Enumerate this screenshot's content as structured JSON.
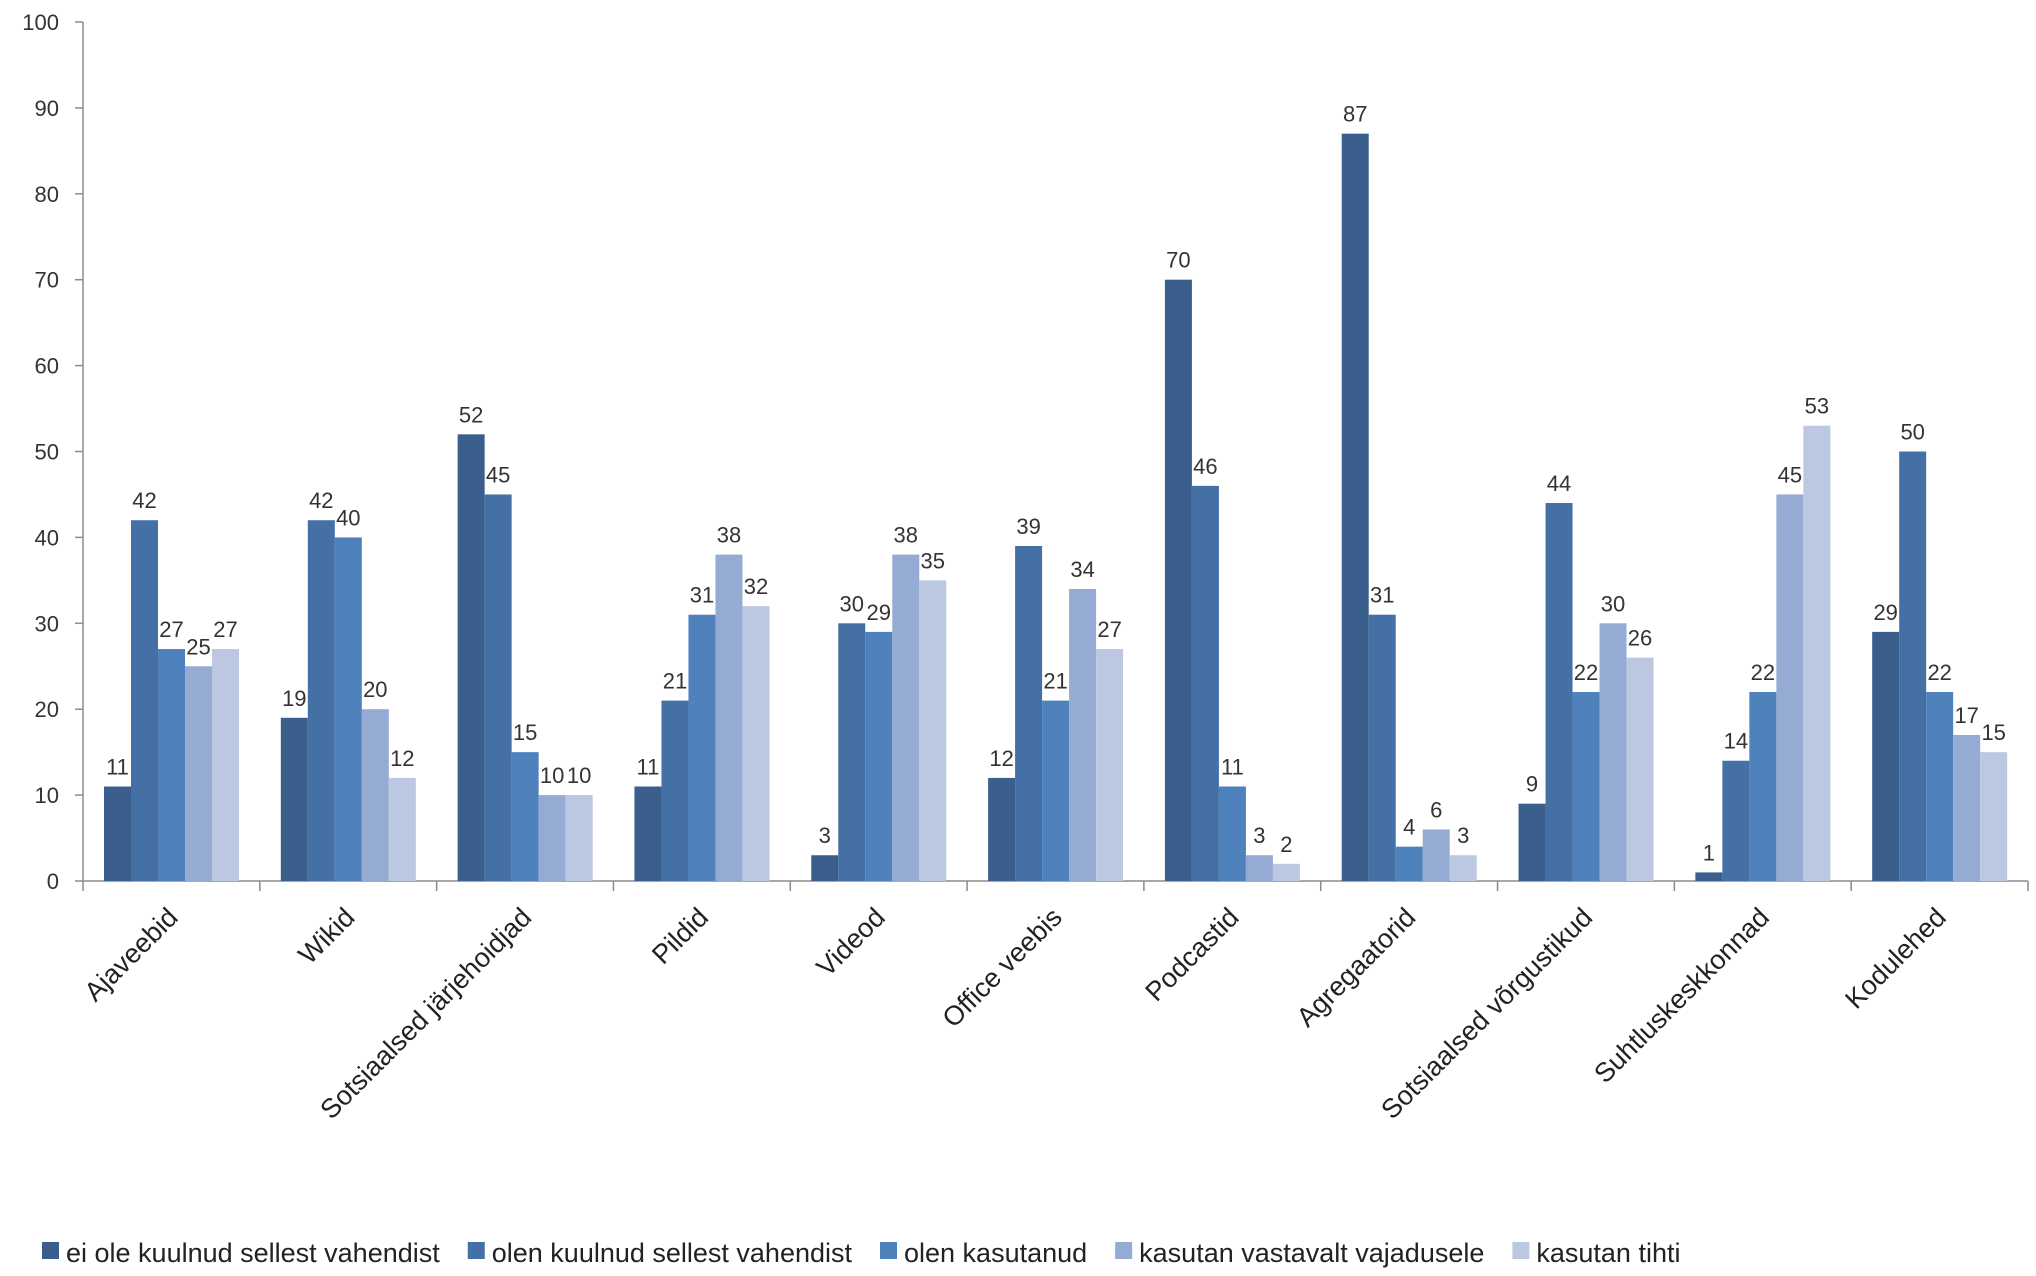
{
  "chart_data": {
    "type": "bar",
    "title": "",
    "xlabel": "",
    "ylabel": "",
    "ylim": [
      0,
      100
    ],
    "yticks": [
      0,
      10,
      20,
      30,
      40,
      50,
      60,
      70,
      80,
      90,
      100
    ],
    "grid": false,
    "legend_position": "bottom",
    "categories": [
      "Ajaveebid",
      "Wikid",
      "Sotsiaalsed järjehoidjad",
      "Pildid",
      "Videod",
      "Office veebis",
      "Podcastid",
      "Agregaatorid",
      "Sotsiaalsed võrgustikud",
      "Suhtluskeskkonnad",
      "Kodulehed"
    ],
    "series": [
      {
        "name": "ei ole kuulnud sellest vahendist",
        "color": "#3A5F8D",
        "values": [
          11,
          19,
          52,
          11,
          3,
          12,
          70,
          87,
          9,
          1,
          29
        ]
      },
      {
        "name": "olen kuulnud sellest vahendist",
        "color": "#4470A6",
        "values": [
          42,
          42,
          45,
          21,
          30,
          39,
          46,
          31,
          44,
          14,
          50
        ]
      },
      {
        "name": "olen kasutanud",
        "color": "#4F81BD",
        "values": [
          27,
          40,
          15,
          31,
          29,
          21,
          11,
          4,
          22,
          22,
          22
        ]
      },
      {
        "name": "kasutan vastavalt vajadusele",
        "color": "#95ABD3",
        "values": [
          25,
          20,
          10,
          38,
          38,
          34,
          3,
          6,
          30,
          45,
          17
        ]
      },
      {
        "name": "kasutan tihti",
        "color": "#BCC8E2",
        "values": [
          27,
          12,
          10,
          32,
          35,
          27,
          2,
          3,
          26,
          53,
          15
        ]
      }
    ]
  }
}
